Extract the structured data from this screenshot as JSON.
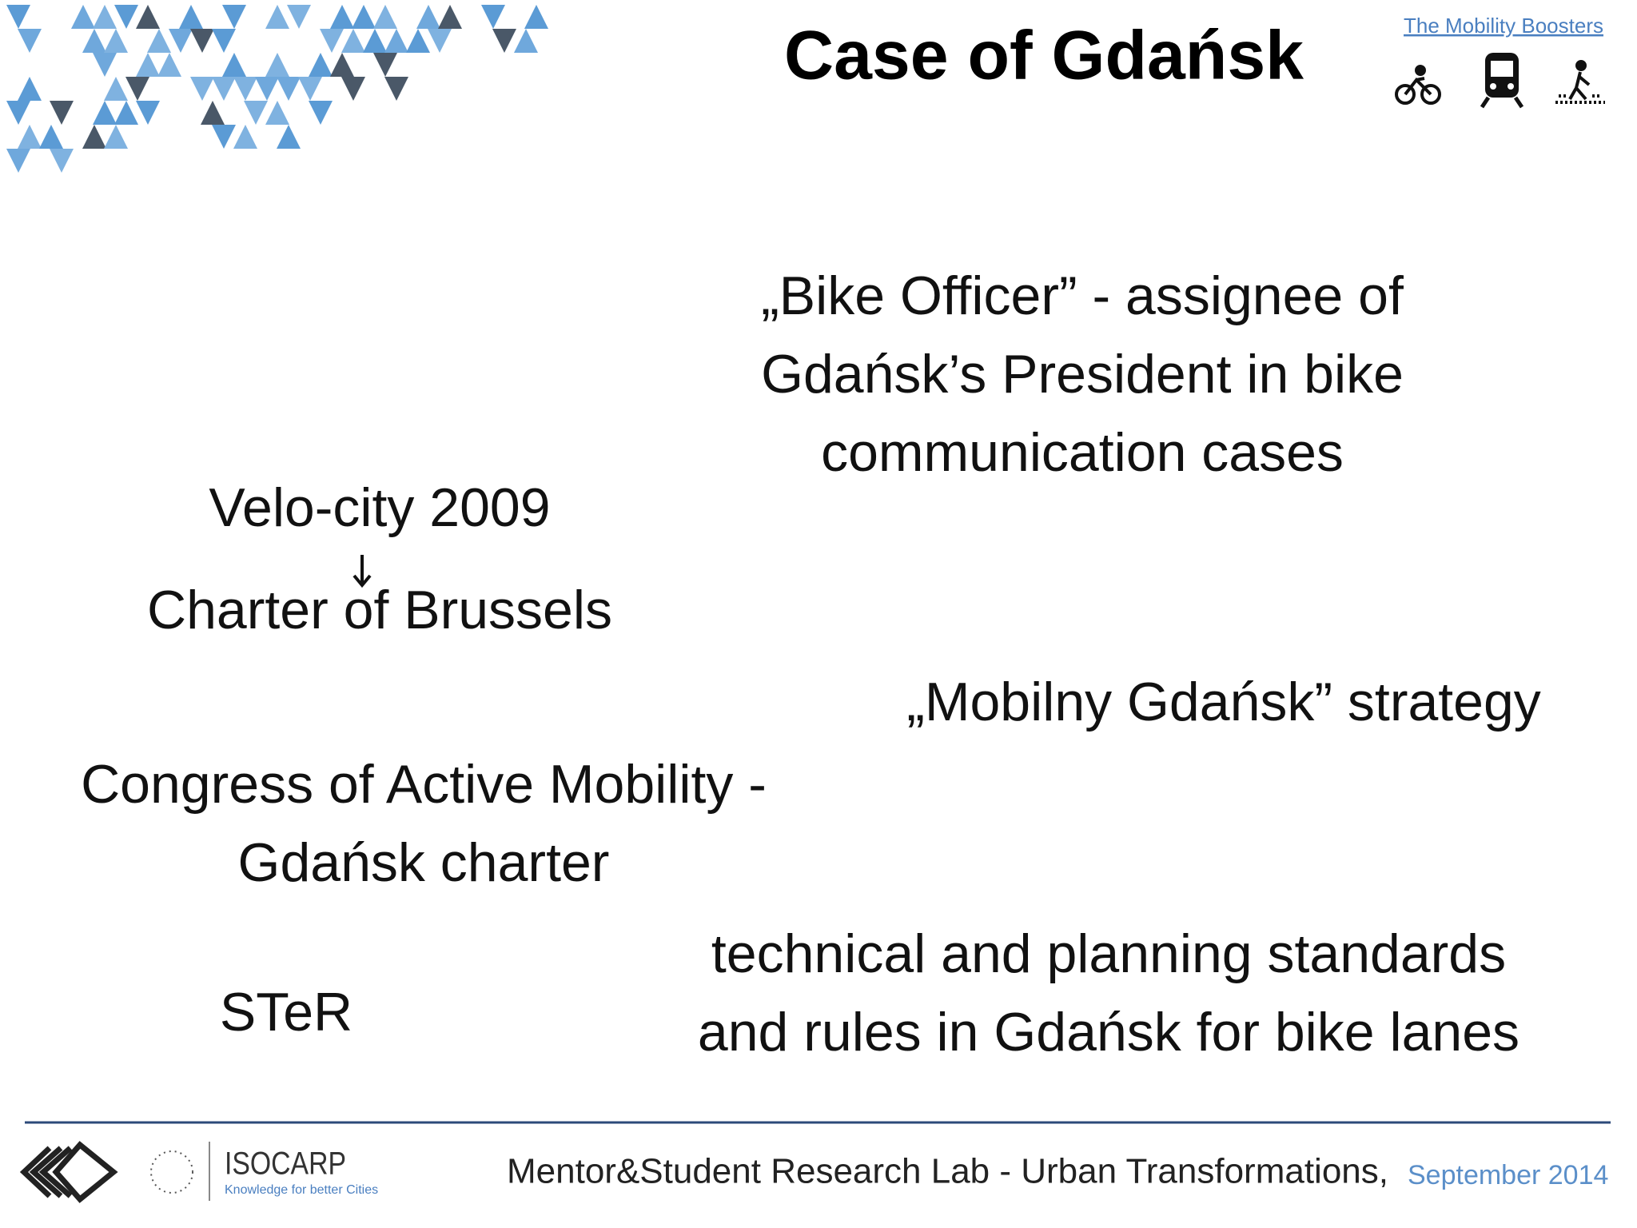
{
  "header": {
    "title": "Case of Gdańsk",
    "link": "The Mobility Boosters"
  },
  "items": [
    {
      "lines": [
        "„Bike Officer” - assignee of",
        "Gdańsk’s President in bike",
        "communication cases"
      ]
    },
    {
      "lines": [
        "Velo-city 2009",
        "Charter of Brussels"
      ]
    },
    {
      "lines": [
        "„Mobilny Gdańsk” strategy"
      ]
    },
    {
      "lines": [
        "Congress of Active Mobility -",
        "Gdańsk charter"
      ]
    },
    {
      "lines": [
        "STeR"
      ]
    },
    {
      "lines": [
        "technical and planning standards",
        "and rules in Gdańsk for bike lanes"
      ]
    }
  ],
  "footer": {
    "logo_name": "ISOCARP",
    "logo_tagline": "Knowledge for better Cities",
    "text": "Mentor&Student Research Lab - Urban Transformations,",
    "date": "September 2014"
  }
}
